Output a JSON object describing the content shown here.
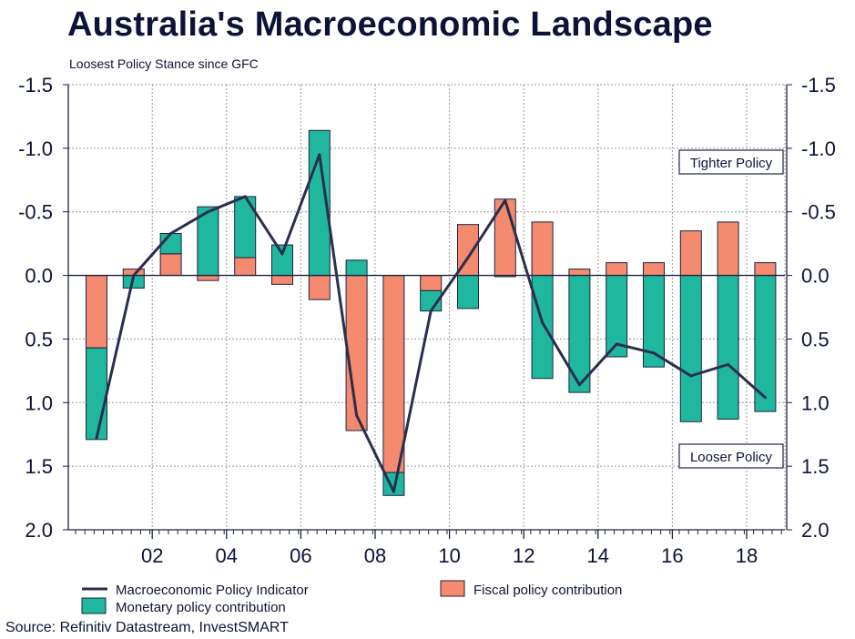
{
  "title": "Australia's Macroeconomic Landscape",
  "subtitle": "Loosest Policy Stance since GFC",
  "source": "Source: Refinitiv Datastream, InvestSMART",
  "colors": {
    "indicator_line": "#2a2e4f",
    "fiscal": "#f58a6f",
    "monetary": "#1fb89f",
    "text": "#0d1337",
    "grid": "#9a9a9a"
  },
  "chart_data": {
    "type": "bar",
    "stacked": true,
    "y_inverted": true,
    "ylim": [
      2.0,
      -1.5
    ],
    "y_ticks": [
      -1.5,
      -1.0,
      -0.5,
      0.0,
      0.5,
      1.0,
      1.5,
      2.0
    ],
    "y_tick_labels": [
      "-1.5",
      "-1.0",
      "-0.5",
      "0.0",
      "0.5",
      "1.0",
      "1.5",
      "2.0"
    ],
    "x_tick_labels": [
      "02",
      "04",
      "06",
      "08",
      "10",
      "12",
      "14",
      "16",
      "18"
    ],
    "x_tick_label_categories": [
      2002,
      2004,
      2006,
      2008,
      2010,
      2012,
      2014,
      2016,
      2018
    ],
    "categories": [
      2001,
      2002,
      2003,
      2004,
      2005,
      2006,
      2007,
      2008,
      2009,
      2010,
      2011,
      2012,
      2013,
      2014,
      2015,
      2016,
      2017,
      2018,
      2019
    ],
    "grid": true,
    "series": [
      {
        "name": "Fiscal policy contribution",
        "kind": "bar",
        "values": [
          0.57,
          -0.05,
          -0.17,
          0.04,
          -0.14,
          0.07,
          0.19,
          1.22,
          1.55,
          0.12,
          -0.4,
          -0.6,
          -0.42,
          -0.05,
          -0.1,
          -0.1,
          -0.35,
          -0.42,
          -0.1
        ]
      },
      {
        "name": "Monetary policy contribution",
        "kind": "bar",
        "values": [
          0.72,
          0.1,
          -0.16,
          -0.54,
          -0.48,
          -0.24,
          -1.14,
          -0.12,
          0.18,
          0.16,
          0.26,
          0.01,
          0.81,
          0.92,
          0.64,
          0.72,
          1.15,
          1.13,
          1.07
        ]
      },
      {
        "name": "Macroeconomic Policy Indicator",
        "kind": "line",
        "values": [
          1.28,
          0.0,
          -0.33,
          -0.5,
          -0.62,
          -0.17,
          -0.95,
          1.1,
          1.7,
          0.28,
          -0.14,
          -0.59,
          0.37,
          0.86,
          0.54,
          0.61,
          0.79,
          0.7,
          0.96
        ]
      }
    ],
    "annotations": [
      "Tighter Policy",
      "Looser Policy"
    ],
    "legend": {
      "placement": "bottom",
      "items": [
        "Macroeconomic Policy Indicator",
        "Fiscal policy contribution",
        "Monetary policy contribution"
      ]
    }
  }
}
